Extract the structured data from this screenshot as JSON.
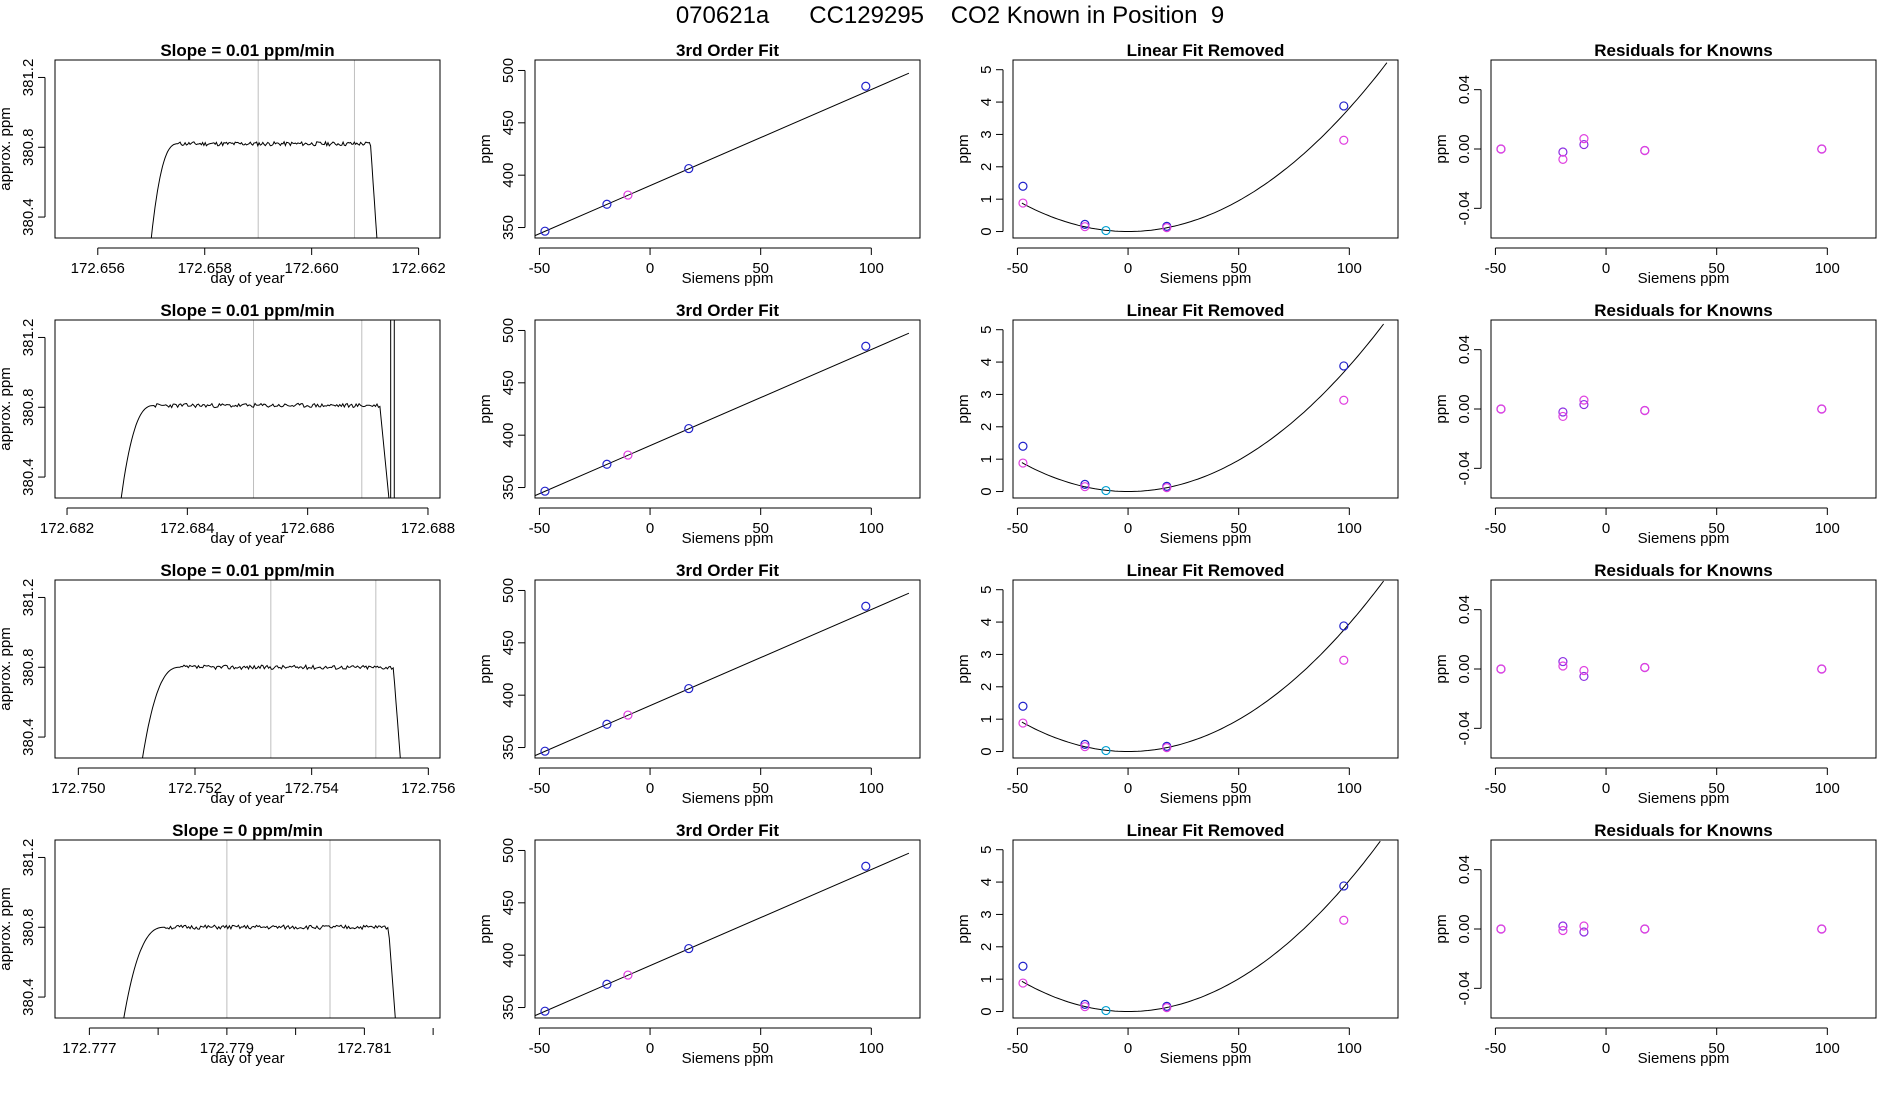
{
  "page_title": "070621a      CC129295    CO2 Known in Position  9",
  "colors": {
    "line": "#000000",
    "frame": "#000000",
    "vline": "#bebebe",
    "blue": "#2222cc",
    "cyan": "#00a0d0",
    "magenta": "#e040e0",
    "purple": "#8a2be2",
    "red_dot": "#ff0000"
  },
  "common": {
    "timeseries_xlabel": "day of year",
    "timeseries_ylabel": "approx. ppm",
    "fit_title": "3rd Order Fit",
    "fit_xlabel": "Siemens ppm",
    "fit_ylabel": "ppm",
    "linfit_title": "Linear Fit Removed",
    "resid_title": "Residuals for Knowns"
  },
  "chart_data": [
    {
      "row": 1,
      "timeseries": {
        "type": "line",
        "title": "Slope =  0.01  ppm/min",
        "xlabel": "day of year",
        "ylabel": "approx. ppm",
        "xlim": [
          172.6552,
          172.6624
        ],
        "x_ticks": [
          "172.656",
          "172.658",
          "172.660",
          "172.662"
        ],
        "x_tick_values": [
          172.656,
          172.658,
          172.66,
          172.662
        ],
        "ylim": [
          380.28,
          381.3
        ],
        "y_ticks": [
          "380.4",
          "380.8",
          "381.2"
        ],
        "y_tick_values": [
          380.4,
          380.8,
          381.2
        ],
        "vlines": [
          172.659,
          172.6608
        ],
        "start": 172.657,
        "rise_end": 172.6575,
        "plateau_end": 172.6611,
        "drop_end": 172.66122,
        "level": 380.82,
        "start_level": 380.28,
        "noise": 0.012,
        "seed": 11
      },
      "fit": {
        "title": "3rd Order Fit",
        "xlabel": "Siemens ppm",
        "ylabel": "ppm",
        "xlim": [
          -52,
          122
        ],
        "ylim": [
          340,
          510
        ],
        "x_ticks": [
          -50,
          0,
          50,
          100
        ],
        "y_ticks": [
          350,
          400,
          450,
          500
        ]
      },
      "linfit": {
        "title": "Linear Fit Removed",
        "xlabel": "Siemens ppm",
        "ylabel": "ppm",
        "xlim": [
          -52,
          122
        ],
        "ylim": [
          -0.2,
          5.3
        ],
        "x_ticks": [
          -50,
          0,
          50,
          100
        ],
        "y_ticks": [
          0,
          1,
          2,
          3,
          4,
          5
        ],
        "curve_a": 0.000381
      },
      "resid": {
        "title": "Residuals for Knowns",
        "xlabel": "Siemens ppm",
        "ylabel": "ppm",
        "xlim": [
          -52,
          122
        ],
        "ylim": [
          -0.06,
          0.06
        ],
        "x_ticks": [
          -50,
          0,
          50,
          100
        ],
        "y_ticks": [
          "-0.04",
          "0.00",
          "0.04"
        ],
        "y_tick_values": [
          -0.04,
          0.0,
          0.04
        ],
        "points": [
          {
            "x": -47.5,
            "y": 0.0,
            "c": "blue"
          },
          {
            "x": -47.5,
            "y": 0.0,
            "c": "magenta"
          },
          {
            "x": -19.5,
            "y": -0.002,
            "c": "blue"
          },
          {
            "x": -19.5,
            "y": -0.007,
            "c": "magenta"
          },
          {
            "x": -10,
            "y": 0.003,
            "c": "blue"
          },
          {
            "x": -10,
            "y": 0.007,
            "c": "magenta"
          },
          {
            "x": 17.5,
            "y": -0.001,
            "c": "blue"
          },
          {
            "x": 17.5,
            "y": -0.001,
            "c": "magenta"
          },
          {
            "x": 97.5,
            "y": 0.0,
            "c": "blue"
          },
          {
            "x": 97.5,
            "y": 0.0,
            "c": "magenta"
          }
        ]
      }
    },
    {
      "row": 2,
      "timeseries": {
        "type": "line",
        "title": "Slope =  0.01  ppm/min",
        "xlabel": "day of year",
        "ylabel": "approx. ppm",
        "xlim": [
          172.6818,
          172.6882
        ],
        "x_ticks": [
          "172.682",
          "172.684",
          "172.686",
          "172.688"
        ],
        "x_tick_values": [
          172.682,
          172.684,
          172.686,
          172.688
        ],
        "ylim": [
          380.28,
          381.3
        ],
        "y_ticks": [
          "380.4",
          "380.8",
          "381.2"
        ],
        "y_tick_values": [
          380.4,
          380.8,
          381.2
        ],
        "vlines": [
          172.6851,
          172.6869
        ],
        "start": 172.6829,
        "rise_end": 172.68345,
        "plateau_end": 172.6872,
        "drop_end": 172.68735,
        "level": 380.81,
        "start_level": 380.28,
        "noise": 0.012,
        "seed": 23,
        "spikes": [
          172.68738,
          172.68744
        ]
      },
      "fit": {
        "title": "3rd Order Fit",
        "xlabel": "Siemens ppm",
        "ylabel": "ppm",
        "xlim": [
          -52,
          122
        ],
        "ylim": [
          340,
          510
        ],
        "x_ticks": [
          -50,
          0,
          50,
          100
        ],
        "y_ticks": [
          350,
          400,
          450,
          500
        ]
      },
      "linfit": {
        "title": "Linear Fit Removed",
        "xlabel": "Siemens ppm",
        "ylabel": "ppm",
        "xlim": [
          -52,
          122
        ],
        "ylim": [
          -0.2,
          5.3
        ],
        "x_ticks": [
          -50,
          0,
          50,
          100
        ],
        "y_ticks": [
          0,
          1,
          2,
          3,
          4,
          5
        ],
        "curve_a": 0.000388
      },
      "resid": {
        "title": "Residuals for Knowns",
        "xlabel": "Siemens ppm",
        "ylabel": "ppm",
        "xlim": [
          -52,
          122
        ],
        "ylim": [
          -0.06,
          0.06
        ],
        "x_ticks": [
          -50,
          0,
          50,
          100
        ],
        "y_ticks": [
          "-0.04",
          "0.00",
          "0.04"
        ],
        "y_tick_values": [
          -0.04,
          0.0,
          0.04
        ],
        "points": [
          {
            "x": -47.5,
            "y": 0.0,
            "c": "blue"
          },
          {
            "x": -47.5,
            "y": 0.0,
            "c": "magenta"
          },
          {
            "x": -19.5,
            "y": -0.002,
            "c": "blue"
          },
          {
            "x": -19.5,
            "y": -0.005,
            "c": "magenta"
          },
          {
            "x": -10,
            "y": 0.003,
            "c": "blue"
          },
          {
            "x": -10,
            "y": 0.006,
            "c": "magenta"
          },
          {
            "x": 17.5,
            "y": -0.001,
            "c": "blue"
          },
          {
            "x": 17.5,
            "y": -0.001,
            "c": "magenta"
          },
          {
            "x": 97.5,
            "y": 0.0,
            "c": "blue"
          },
          {
            "x": 97.5,
            "y": 0.0,
            "c": "magenta"
          }
        ]
      }
    },
    {
      "row": 3,
      "timeseries": {
        "type": "line",
        "title": "Slope =  0.01  ppm/min",
        "xlabel": "day of year",
        "ylabel": "approx. ppm",
        "xlim": [
          172.7496,
          172.7562
        ],
        "x_ticks": [
          "172.750",
          "172.752",
          "172.754",
          "172.756"
        ],
        "x_tick_values": [
          172.75,
          172.752,
          172.754,
          172.756
        ],
        "ylim": [
          380.28,
          381.3
        ],
        "y_ticks": [
          "380.4",
          "380.8",
          "381.2"
        ],
        "y_tick_values": [
          380.4,
          380.8,
          381.2
        ],
        "vlines": [
          172.7533,
          172.7551
        ],
        "start": 172.7511,
        "rise_end": 172.75175,
        "plateau_end": 172.7554,
        "drop_end": 172.75552,
        "level": 380.8,
        "start_level": 380.28,
        "noise": 0.012,
        "seed": 37
      },
      "fit": {
        "title": "3rd Order Fit",
        "xlabel": "Siemens ppm",
        "ylabel": "ppm",
        "xlim": [
          -52,
          122
        ],
        "ylim": [
          340,
          510
        ],
        "x_ticks": [
          -50,
          0,
          50,
          100
        ],
        "y_ticks": [
          350,
          400,
          450,
          500
        ]
      },
      "linfit": {
        "title": "Linear Fit Removed",
        "xlabel": "Siemens ppm",
        "ylabel": "ppm",
        "xlim": [
          -52,
          122
        ],
        "ylim": [
          -0.2,
          5.3
        ],
        "x_ticks": [
          -50,
          0,
          50,
          100
        ],
        "y_ticks": [
          0,
          1,
          2,
          3,
          4,
          5
        ],
        "curve_a": 0.000395
      },
      "resid": {
        "title": "Residuals for Knowns",
        "xlabel": "Siemens ppm",
        "ylabel": "ppm",
        "xlim": [
          -52,
          122
        ],
        "ylim": [
          -0.06,
          0.06
        ],
        "x_ticks": [
          -50,
          0,
          50,
          100
        ],
        "y_ticks": [
          "-0.04",
          "0.00",
          "0.04"
        ],
        "y_tick_values": [
          -0.04,
          0.0,
          0.04
        ],
        "points": [
          {
            "x": -47.5,
            "y": 0.0,
            "c": "blue"
          },
          {
            "x": -47.5,
            "y": 0.0,
            "c": "magenta"
          },
          {
            "x": -19.5,
            "y": 0.005,
            "c": "blue"
          },
          {
            "x": -19.5,
            "y": 0.002,
            "c": "magenta"
          },
          {
            "x": -10,
            "y": -0.005,
            "c": "blue"
          },
          {
            "x": -10,
            "y": -0.001,
            "c": "magenta"
          },
          {
            "x": 17.5,
            "y": 0.001,
            "c": "blue"
          },
          {
            "x": 17.5,
            "y": 0.001,
            "c": "magenta"
          },
          {
            "x": 97.5,
            "y": 0.0,
            "c": "blue"
          },
          {
            "x": 97.5,
            "y": 0.0,
            "c": "magenta"
          }
        ]
      }
    },
    {
      "row": 4,
      "timeseries": {
        "type": "line",
        "title": "Slope =  0  ppm/min",
        "xlabel": "day of year",
        "ylabel": "approx. ppm",
        "xlim": [
          172.7765,
          172.7821
        ],
        "x_ticks": [
          "172.777",
          "172.779",
          "172.781"
        ],
        "x_tick_values": [
          172.777,
          172.779,
          172.781
        ],
        "minor_ticks": [
          172.778,
          172.78,
          172.782
        ],
        "ylim": [
          380.28,
          381.3
        ],
        "y_ticks": [
          "380.4",
          "380.8",
          "381.2"
        ],
        "y_tick_values": [
          380.4,
          380.8,
          381.2
        ],
        "vlines": [
          172.779,
          172.7805
        ],
        "start": 172.7775,
        "rise_end": 172.7781,
        "plateau_end": 172.78135,
        "drop_end": 172.78145,
        "level": 380.8,
        "start_level": 380.28,
        "noise": 0.012,
        "seed": 51
      },
      "fit": {
        "title": "3rd Order Fit",
        "xlabel": "Siemens ppm",
        "ylabel": "ppm",
        "xlim": [
          -52,
          122
        ],
        "ylim": [
          340,
          510
        ],
        "x_ticks": [
          -50,
          0,
          50,
          100
        ],
        "y_ticks": [
          350,
          400,
          450,
          500
        ]
      },
      "linfit": {
        "title": "Linear Fit Removed",
        "xlabel": "Siemens ppm",
        "ylabel": "ppm",
        "xlim": [
          -52,
          122
        ],
        "ylim": [
          -0.2,
          5.3
        ],
        "x_ticks": [
          -50,
          0,
          50,
          100
        ],
        "y_ticks": [
          0,
          1,
          2,
          3,
          4,
          5
        ],
        "curve_a": 0.000405
      },
      "resid": {
        "title": "Residuals for Knowns",
        "xlabel": "Siemens ppm",
        "ylabel": "ppm",
        "xlim": [
          -52,
          122
        ],
        "ylim": [
          -0.06,
          0.06
        ],
        "x_ticks": [
          -50,
          0,
          50,
          100
        ],
        "y_ticks": [
          "-0.04",
          "0.00",
          "0.04"
        ],
        "y_tick_values": [
          -0.04,
          0.0,
          0.04
        ],
        "points": [
          {
            "x": -47.5,
            "y": 0.0,
            "c": "blue"
          },
          {
            "x": -47.5,
            "y": 0.0,
            "c": "magenta"
          },
          {
            "x": -19.5,
            "y": 0.002,
            "c": "blue"
          },
          {
            "x": -19.5,
            "y": -0.001,
            "c": "magenta"
          },
          {
            "x": -10,
            "y": -0.002,
            "c": "blue"
          },
          {
            "x": -10,
            "y": 0.002,
            "c": "magenta"
          },
          {
            "x": 17.5,
            "y": 0.0,
            "c": "blue"
          },
          {
            "x": 17.5,
            "y": 0.0,
            "c": "magenta"
          },
          {
            "x": 97.5,
            "y": 0.0,
            "c": "blue"
          },
          {
            "x": 97.5,
            "y": 0.0,
            "c": "magenta"
          }
        ]
      }
    }
  ],
  "fit_points": [
    {
      "x": -47.5,
      "y": 346.5,
      "c": "blue"
    },
    {
      "x": -19.5,
      "y": 372.2,
      "c": "blue"
    },
    {
      "x": -10,
      "y": 381.0,
      "c": "magenta"
    },
    {
      "x": 17.5,
      "y": 406.3,
      "c": "blue"
    },
    {
      "x": 97.5,
      "y": 484.9,
      "c": "blue"
    }
  ],
  "fit_line": {
    "slope": 0.918,
    "intercept": 390.0,
    "x_from": -52,
    "x_to": 117
  },
  "linfit_points": [
    {
      "x": -47.5,
      "y": 1.4,
      "c": "blue"
    },
    {
      "x": -47.5,
      "y": 0.88,
      "c": "magenta"
    },
    {
      "x": -19.5,
      "y": 0.22,
      "c": "blue"
    },
    {
      "x": -19.5,
      "y": 0.15,
      "c": "magenta"
    },
    {
      "x": -10,
      "y": 0.03,
      "c": "cyan"
    },
    {
      "x": 17.5,
      "y": 0.16,
      "c": "blue"
    },
    {
      "x": 17.5,
      "y": 0.12,
      "c": "magenta"
    },
    {
      "x": 97.5,
      "y": 3.88,
      "c": "blue"
    },
    {
      "x": 97.5,
      "y": 2.82,
      "c": "magenta"
    }
  ]
}
